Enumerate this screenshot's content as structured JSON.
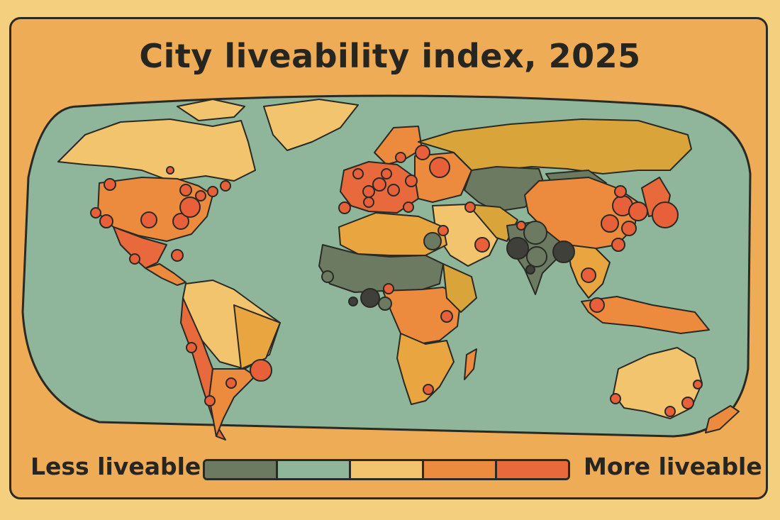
{
  "title": "City liveability index, 2025",
  "legend": {
    "low_label": "Less liveable",
    "high_label": "More liveable",
    "classes": [
      {
        "level": 1,
        "color": "#6d7a62"
      },
      {
        "level": 2,
        "color": "#8fb59a"
      },
      {
        "level": 3,
        "color": "#f2c46d"
      },
      {
        "level": 4,
        "color": "#ec8a3e"
      },
      {
        "level": 5,
        "color": "#e8693c"
      }
    ]
  },
  "colors": {
    "ocean": "#8fb59a",
    "poster_bg": "#eeac57",
    "outline": "#2a2a24",
    "least_liveable": "#3f403a",
    "most_liveable": "#e8603a"
  }
}
